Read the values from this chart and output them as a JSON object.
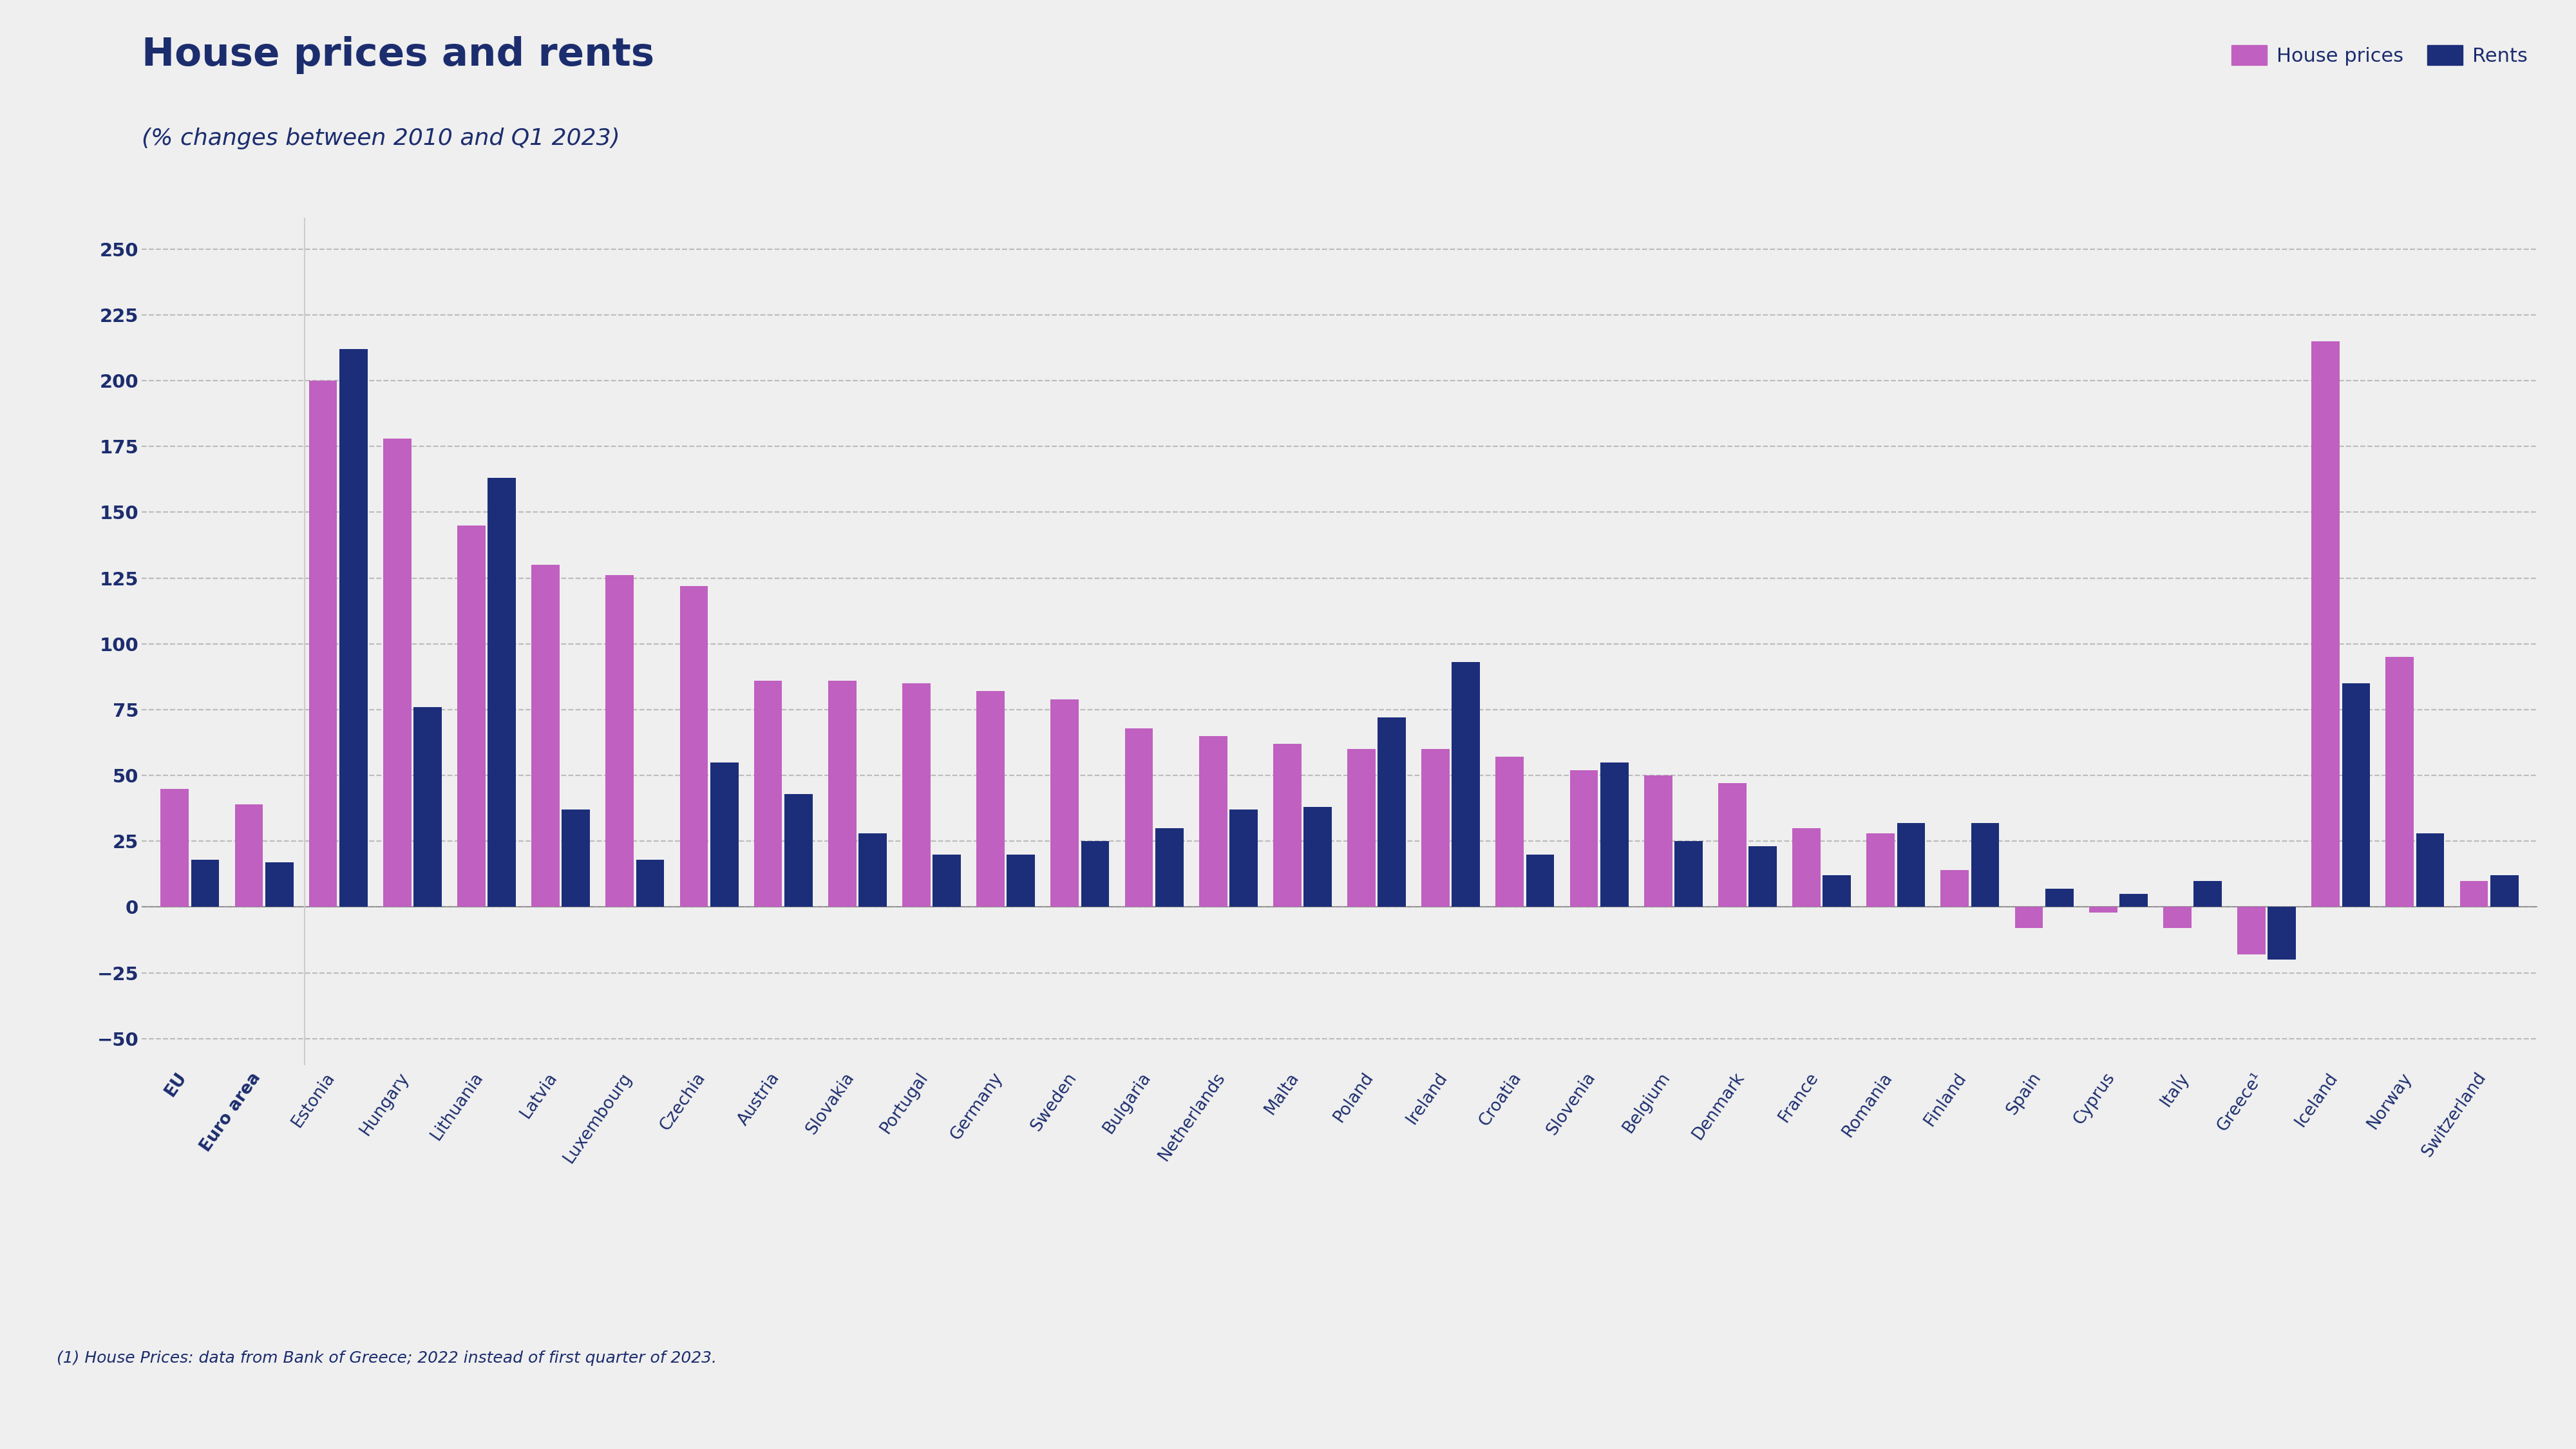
{
  "title": "House prices and rents",
  "subtitle": "(% changes between 2010 and Q1 2023)",
  "footnote": "(1) House Prices: data from Bank of Greece; 2022 instead of first quarter of 2023.",
  "legend_labels": [
    "House prices",
    "Rents"
  ],
  "house_price_color": "#C060C0",
  "rents_color": "#1C2D7A",
  "background_color": "#EFEFEF",
  "plot_bg_color": "#EFEFEF",
  "ylim": [
    -60,
    262
  ],
  "yticks": [
    -50,
    -25,
    0,
    25,
    50,
    75,
    100,
    125,
    150,
    175,
    200,
    225,
    250
  ],
  "categories": [
    "EU",
    "Euro area",
    "Estonia",
    "Hungary",
    "Lithuania",
    "Latvia",
    "Luxembourg",
    "Czechia",
    "Austria",
    "Slovakia",
    "Portugal",
    "Germany",
    "Sweden",
    "Bulgaria",
    "Netherlands",
    "Malta",
    "Poland",
    "Ireland",
    "Croatia",
    "Slovenia",
    "Belgium",
    "Denmark",
    "France",
    "Romania",
    "Finland",
    "Spain",
    "Cyprus",
    "Italy",
    "Greece¹",
    "Iceland",
    "Norway",
    "Switzerland"
  ],
  "house_prices": [
    45,
    39,
    200,
    178,
    145,
    130,
    126,
    122,
    86,
    86,
    85,
    82,
    79,
    68,
    65,
    62,
    60,
    60,
    57,
    52,
    50,
    47,
    30,
    28,
    14,
    -8,
    -2,
    -8,
    -18,
    215,
    95,
    10
  ],
  "rents": [
    18,
    17,
    212,
    76,
    163,
    37,
    18,
    55,
    43,
    28,
    20,
    20,
    25,
    30,
    37,
    38,
    72,
    93,
    20,
    55,
    25,
    23,
    12,
    32,
    32,
    7,
    5,
    10,
    -20,
    85,
    28,
    12
  ]
}
